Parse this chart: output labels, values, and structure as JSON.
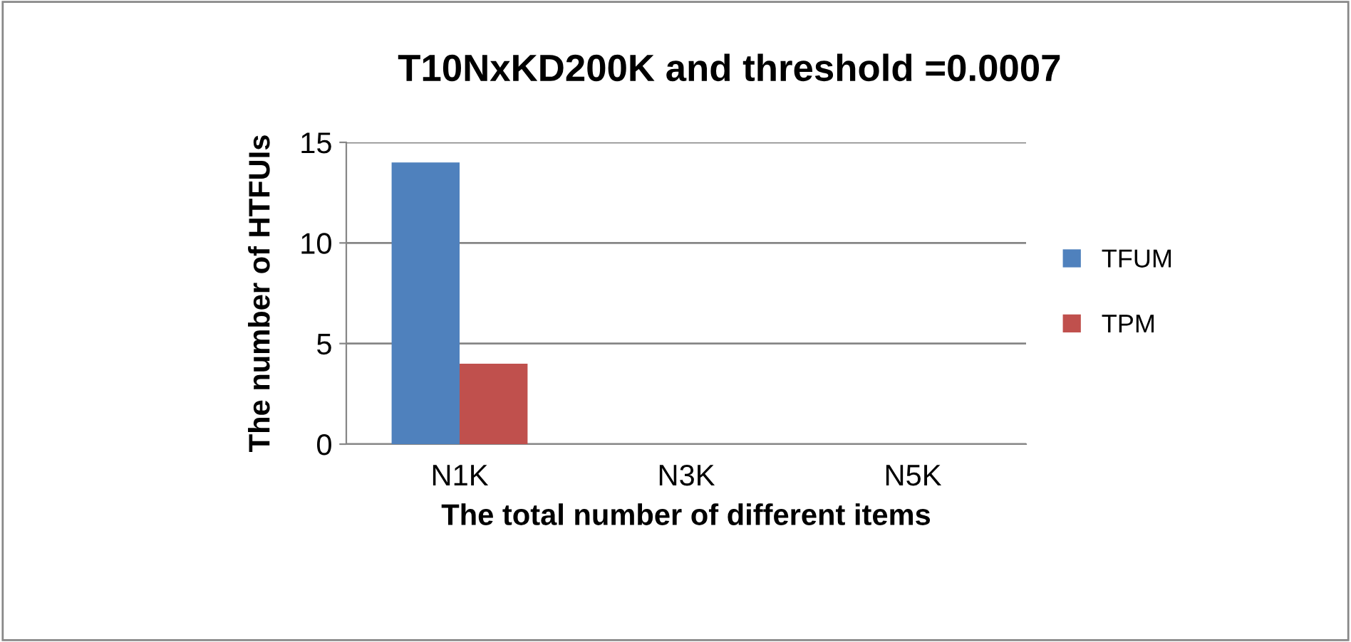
{
  "chart_data": {
    "type": "bar",
    "title": "T10NxKD200K and threshold =0.0007",
    "xlabel": "The total number of different items",
    "ylabel": "The number of HTFUIs",
    "categories": [
      "N1K",
      "N3K",
      "N5K"
    ],
    "series": [
      {
        "name": "TFUM",
        "color": "#4f81bd",
        "values": [
          14,
          0,
          0
        ]
      },
      {
        "name": "TPM",
        "color": "#c0504d",
        "values": [
          4,
          0,
          0
        ]
      }
    ],
    "ylim": [
      0,
      15
    ],
    "yticks": [
      0,
      5,
      10,
      15
    ],
    "grid": "y",
    "legend": "right"
  }
}
